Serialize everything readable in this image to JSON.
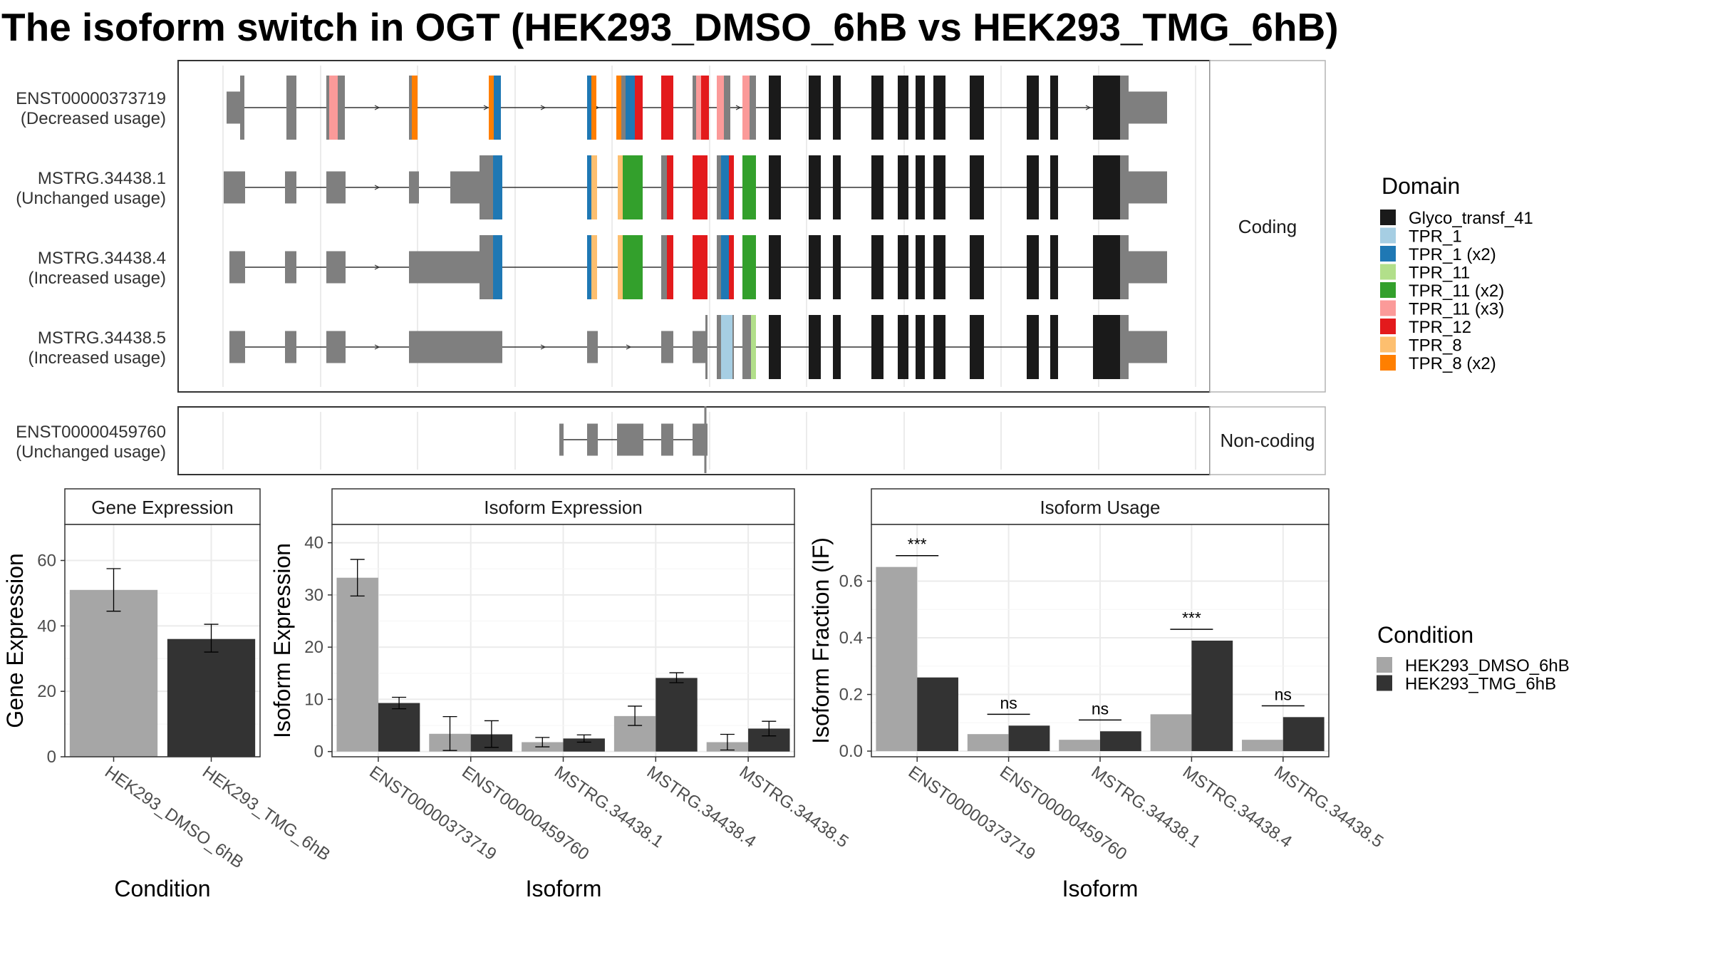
{
  "title": "The isoform switch in OGT (HEK293_DMSO_6hB vs HEK293_TMG_6hB)",
  "colors": {
    "grey_exon": "#7f7f7f",
    "cond1": "#a6a6a6",
    "cond2": "#333333",
    "domains": {
      "Glyco_transf_41": "#1a1a1a",
      "TPR_1": "#a6cee3",
      "TPR_1 (x2)": "#1f78b4",
      "TPR_11": "#b2df8a",
      "TPR_11 (x2)": "#33a02c",
      "TPR_11 (x3)": "#fb9a99",
      "TPR_12": "#e31a1c",
      "TPR_8": "#fdbf6f",
      "TPR_8 (x2)": "#ff7f00"
    }
  },
  "structure": {
    "coding_strip": "Coding",
    "noncoding_strip": "Non-coding",
    "transcripts": [
      {
        "id": "ENST00000373719",
        "usage": "(Decreased usage)"
      },
      {
        "id": "MSTRG.34438.1",
        "usage": "(Unchanged usage)"
      },
      {
        "id": "MSTRG.34438.4",
        "usage": "(Increased usage)"
      },
      {
        "id": "MSTRG.34438.5",
        "usage": "(Increased usage)"
      },
      {
        "id": "ENST00000459760",
        "usage": "(Unchanged usage)"
      }
    ]
  },
  "legend_domain": {
    "title": "Domain",
    "items": [
      "Glyco_transf_41",
      "TPR_1",
      "TPR_1 (x2)",
      "TPR_11",
      "TPR_11 (x2)",
      "TPR_11 (x3)",
      "TPR_12",
      "TPR_8",
      "TPR_8 (x2)"
    ]
  },
  "legend_condition": {
    "title": "Condition",
    "items": [
      "HEK293_DMSO_6hB",
      "HEK293_TMG_6hB"
    ]
  },
  "chart_data": [
    {
      "type": "bar",
      "title": "Gene Expression",
      "xlabel": "Condition",
      "ylabel": "Gene Expression",
      "ylim": [
        0,
        71
      ],
      "yticks": [
        0,
        20,
        40,
        60
      ],
      "categories": [
        "HEK293_DMSO_6hB",
        "HEK293_TMG_6hB"
      ],
      "values": [
        51,
        36
      ],
      "error_low": [
        44.5,
        32
      ],
      "error_high": [
        57.5,
        40.5
      ]
    },
    {
      "type": "bar",
      "title": "Isoform Expression",
      "xlabel": "Isoform",
      "ylabel": "Isoform Expression",
      "ylim": [
        -1,
        43.5
      ],
      "yticks": [
        0,
        10,
        20,
        30,
        40
      ],
      "categories": [
        "ENST00000373719",
        "ENST00000459760",
        "MSTRG.34438.1",
        "MSTRG.34438.4",
        "MSTRG.34438.5"
      ],
      "series": [
        {
          "name": "HEK293_DMSO_6hB",
          "values": [
            33.3,
            3.4,
            1.8,
            6.8,
            1.8
          ],
          "error_low": [
            29.8,
            0.2,
            0.9,
            5.0,
            0.3
          ],
          "error_high": [
            36.8,
            6.7,
            2.7,
            8.7,
            3.3
          ]
        },
        {
          "name": "HEK293_TMG_6hB",
          "values": [
            9.3,
            3.3,
            2.5,
            14.1,
            4.4
          ],
          "error_low": [
            8.2,
            0.8,
            1.8,
            13.2,
            3.0
          ],
          "error_high": [
            10.4,
            5.9,
            3.2,
            15.1,
            5.8
          ]
        }
      ]
    },
    {
      "type": "bar",
      "title": "Isoform Usage",
      "xlabel": "Isoform",
      "ylabel": "Isoform Fraction (IF)",
      "ylim": [
        -0.02,
        0.8
      ],
      "yticks": [
        0.0,
        0.2,
        0.4,
        0.6
      ],
      "categories": [
        "ENST00000373719",
        "ENST00000459760",
        "MSTRG.34438.1",
        "MSTRG.34438.4",
        "MSTRG.34438.5"
      ],
      "series": [
        {
          "name": "HEK293_DMSO_6hB",
          "values": [
            0.65,
            0.06,
            0.04,
            0.13,
            0.04
          ]
        },
        {
          "name": "HEK293_TMG_6hB",
          "values": [
            0.26,
            0.09,
            0.07,
            0.39,
            0.12
          ]
        }
      ],
      "significance": [
        "***",
        "ns",
        "ns",
        "***",
        "ns"
      ]
    }
  ]
}
